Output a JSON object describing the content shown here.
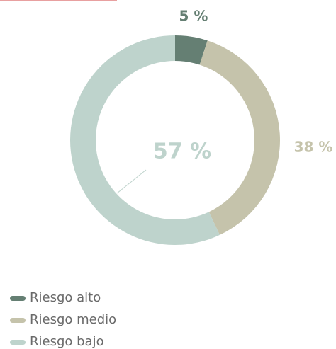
{
  "chart_data": {
    "type": "donut",
    "categories": [
      "Riesgo alto",
      "Riesgo medio",
      "Riesgo bajo"
    ],
    "values": [
      5,
      38,
      57
    ],
    "value_labels": [
      "5 %",
      "38 %",
      "57 %"
    ],
    "colors": [
      "#657f73",
      "#c5c3ab",
      "#bed3cc"
    ],
    "legend": "bottom-left"
  }
}
